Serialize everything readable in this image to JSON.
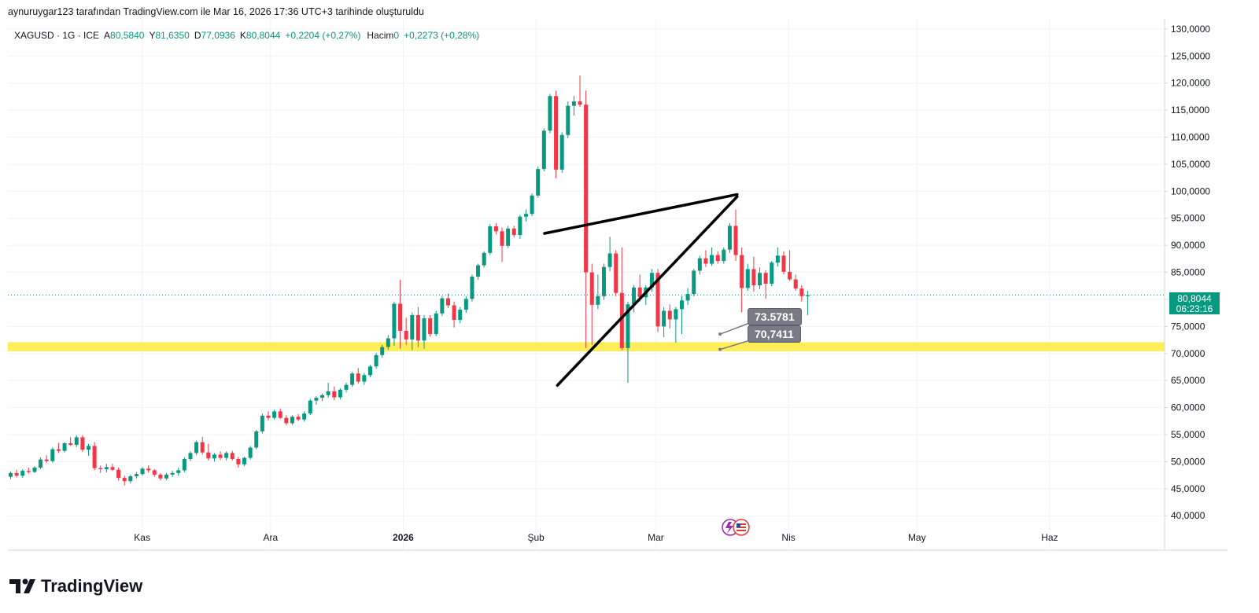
{
  "header": "aynuruygar123 tarafından TradingView.com ile Mar 16, 2026 17:36 UTC+3 tarihinde oluşturuldu",
  "legend": {
    "symbol": "XAGUSD · 1G · ICE",
    "o_label": "A",
    "o_value": "80,5840",
    "h_label": "Y",
    "h_value": "81,6350",
    "l_label": "D",
    "l_value": "77,0936",
    "c_label": "K",
    "c_value": "80,8044",
    "change": "+0,2204 (+0,27%)",
    "volume_label": "Hacim",
    "volume_value": "0",
    "volume_change": "+0,2273 (+0,28%)"
  },
  "brand": "TradingView",
  "last_price": {
    "value": "80,8044",
    "countdown": "06:23:16"
  },
  "annotations": [
    {
      "label": "73.5781",
      "value": 73.5781
    },
    {
      "label": "70,7411",
      "value": 70.7411
    }
  ],
  "colors": {
    "up": "#089981",
    "down": "#F23645",
    "support": "#FFEB3B",
    "trendline": "#000000"
  },
  "chart_data": {
    "type": "candlestick",
    "title": "XAGUSD",
    "y_axis": {
      "ylim": [
        38,
        131
      ],
      "ticks": [
        130,
        125,
        120,
        115,
        110,
        105,
        100,
        95,
        90,
        85,
        80,
        75,
        70,
        65,
        60,
        55,
        50,
        45,
        40
      ],
      "tick_labels": [
        "130,0000",
        "125,0000",
        "120,0000",
        "115,0000",
        "110,0000",
        "105,0000",
        "100,0000",
        "95,0000",
        "90,0000",
        "85,0000",
        "80,0000",
        "75,0000",
        "70,0000",
        "65,0000",
        "60,0000",
        "55,0000",
        "50,0000",
        "45,0000",
        "40,0000"
      ],
      "position": "right"
    },
    "x_axis": {
      "tick_labels": [
        "Kas",
        "Ara",
        "2026",
        "Şub",
        "Mar",
        "Nis",
        "May",
        "Haz"
      ],
      "tick_dates": [
        "2025-11-01",
        "2025-12-01",
        "2026-01-01",
        "2026-02-01",
        "2026-03-01",
        "2026-04-01",
        "2026-05-01",
        "2026-06-01"
      ],
      "bold": [
        "2026"
      ]
    },
    "start_date": "2025-10-01",
    "ohlc": [
      [
        47.2,
        48.2,
        46.8,
        47.9
      ],
      [
        47.9,
        48.5,
        47.1,
        47.4
      ],
      [
        47.4,
        48.6,
        47.0,
        48.3
      ],
      [
        48.3,
        48.9,
        47.8,
        48.1
      ],
      [
        48.1,
        49.2,
        47.9,
        48.9
      ],
      [
        48.9,
        50.8,
        48.6,
        50.4
      ],
      [
        50.4,
        51.2,
        49.8,
        50.1
      ],
      [
        50.1,
        52.6,
        49.8,
        52.3
      ],
      [
        52.3,
        53.5,
        51.6,
        52.0
      ],
      [
        52.0,
        53.6,
        51.7,
        53.4
      ],
      [
        53.4,
        54.5,
        52.9,
        53.1
      ],
      [
        53.1,
        54.9,
        52.7,
        54.5
      ],
      [
        54.5,
        54.9,
        51.8,
        52.2
      ],
      [
        52.2,
        53.3,
        51.1,
        52.9
      ],
      [
        52.9,
        53.6,
        48.4,
        48.8
      ],
      [
        48.8,
        49.3,
        47.9,
        48.6
      ],
      [
        48.6,
        49.6,
        48.0,
        49.0
      ],
      [
        49.0,
        49.6,
        48.3,
        48.5
      ],
      [
        48.5,
        48.9,
        46.5,
        47.0
      ],
      [
        47.0,
        47.4,
        45.6,
        46.4
      ],
      [
        46.4,
        47.6,
        46.0,
        47.3
      ],
      [
        47.3,
        48.1,
        46.9,
        47.7
      ],
      [
        47.7,
        49.0,
        47.4,
        48.7
      ],
      [
        48.7,
        49.3,
        48.0,
        48.4
      ],
      [
        48.4,
        48.6,
        47.2,
        47.6
      ],
      [
        47.6,
        47.9,
        46.5,
        46.9
      ],
      [
        46.9,
        47.9,
        46.6,
        47.6
      ],
      [
        47.6,
        48.3,
        47.2,
        47.9
      ],
      [
        47.9,
        48.9,
        47.4,
        48.4
      ],
      [
        48.4,
        50.8,
        48.0,
        50.5
      ],
      [
        50.5,
        51.9,
        50.1,
        51.6
      ],
      [
        51.6,
        53.9,
        51.2,
        53.6
      ],
      [
        53.6,
        54.6,
        51.3,
        51.7
      ],
      [
        51.7,
        53.3,
        50.2,
        50.6
      ],
      [
        50.6,
        51.6,
        50.0,
        51.3
      ],
      [
        51.3,
        51.9,
        50.3,
        50.7
      ],
      [
        50.7,
        51.9,
        50.2,
        51.6
      ],
      [
        51.6,
        52.0,
        50.2,
        50.5
      ],
      [
        50.5,
        50.9,
        48.9,
        49.5
      ],
      [
        49.5,
        50.9,
        49.2,
        50.7
      ],
      [
        50.7,
        52.9,
        50.4,
        52.6
      ],
      [
        52.6,
        55.9,
        52.3,
        55.6
      ],
      [
        55.6,
        58.9,
        55.2,
        58.5
      ],
      [
        58.5,
        59.3,
        57.6,
        58.1
      ],
      [
        58.1,
        59.6,
        57.8,
        59.3
      ],
      [
        59.3,
        59.8,
        57.9,
        58.1
      ],
      [
        58.1,
        58.6,
        56.7,
        57.1
      ],
      [
        57.1,
        58.6,
        56.8,
        58.3
      ],
      [
        58.3,
        58.8,
        57.5,
        57.8
      ],
      [
        57.8,
        59.3,
        57.4,
        58.9
      ],
      [
        58.9,
        61.6,
        58.6,
        61.3
      ],
      [
        61.3,
        62.1,
        60.5,
        61.8
      ],
      [
        61.8,
        62.6,
        61.2,
        62.3
      ],
      [
        62.3,
        64.6,
        61.8,
        63.0
      ],
      [
        63.0,
        63.9,
        61.4,
        61.9
      ],
      [
        61.9,
        63.6,
        61.5,
        63.3
      ],
      [
        63.3,
        64.6,
        62.8,
        64.2
      ],
      [
        64.2,
        66.6,
        63.8,
        66.3
      ],
      [
        66.3,
        67.3,
        64.4,
        64.8
      ],
      [
        64.8,
        66.4,
        64.2,
        66.0
      ],
      [
        66.0,
        67.9,
        65.6,
        67.6
      ],
      [
        67.6,
        70.1,
        67.2,
        69.7
      ],
      [
        69.7,
        71.6,
        69.2,
        71.2
      ],
      [
        71.2,
        73.4,
        70.7,
        72.8
      ],
      [
        72.8,
        79.6,
        71.4,
        79.2
      ],
      [
        79.2,
        83.6,
        70.9,
        74.2
      ],
      [
        74.2,
        76.6,
        71.6,
        72.6
      ],
      [
        72.6,
        77.6,
        70.6,
        77.1
      ],
      [
        77.1,
        78.6,
        71.2,
        72.4
      ],
      [
        72.4,
        77.1,
        70.9,
        76.5
      ],
      [
        76.5,
        77.1,
        73.1,
        73.6
      ],
      [
        73.6,
        77.9,
        73.2,
        77.4
      ],
      [
        77.4,
        80.6,
        76.9,
        80.2
      ],
      [
        80.2,
        81.1,
        78.4,
        78.9
      ],
      [
        78.9,
        79.6,
        74.8,
        76.2
      ],
      [
        76.2,
        78.6,
        75.6,
        78.1
      ],
      [
        78.1,
        80.6,
        77.5,
        80.1
      ],
      [
        80.1,
        84.6,
        79.6,
        84.2
      ],
      [
        84.2,
        86.6,
        83.6,
        86.3
      ],
      [
        86.3,
        88.9,
        85.9,
        88.6
      ],
      [
        88.6,
        93.9,
        88.2,
        93.5
      ],
      [
        93.5,
        94.1,
        92.0,
        92.6
      ],
      [
        92.6,
        93.3,
        86.9,
        89.9
      ],
      [
        89.9,
        93.6,
        89.5,
        93.1
      ],
      [
        93.1,
        93.6,
        91.5,
        91.9
      ],
      [
        91.9,
        95.6,
        91.2,
        95.3
      ],
      [
        95.3,
        96.6,
        94.4,
        95.8
      ],
      [
        95.8,
        99.6,
        95.4,
        99.2
      ],
      [
        99.2,
        104.6,
        98.8,
        104.1
      ],
      [
        104.1,
        111.6,
        103.7,
        111.2
      ],
      [
        111.2,
        118.0,
        110.7,
        117.6
      ],
      [
        117.6,
        118.6,
        102.4,
        104.0
      ],
      [
        104.0,
        110.9,
        103.4,
        110.4
      ],
      [
        110.4,
        116.6,
        109.8,
        115.8
      ],
      [
        115.8,
        117.6,
        114.0,
        116.6
      ],
      [
        116.6,
        121.4,
        115.6,
        116.0
      ],
      [
        116.0,
        118.6,
        71.0,
        85.0
      ],
      [
        85.0,
        86.6,
        71.6,
        79.0
      ],
      [
        79.0,
        84.6,
        78.2,
        80.6
      ],
      [
        80.6,
        86.6,
        79.9,
        86.0
      ],
      [
        86.0,
        91.6,
        85.2,
        88.5
      ],
      [
        88.5,
        89.1,
        80.6,
        81.2
      ],
      [
        81.2,
        89.6,
        70.6,
        71.0
      ],
      [
        71.0,
        79.6,
        64.6,
        79.1
      ],
      [
        79.1,
        82.6,
        77.6,
        82.2
      ],
      [
        82.2,
        84.6,
        79.6,
        80.4
      ],
      [
        80.4,
        82.6,
        79.0,
        82.2
      ],
      [
        82.2,
        85.6,
        81.4,
        84.9
      ],
      [
        84.9,
        85.6,
        74.0,
        75.0
      ],
      [
        75.0,
        78.6,
        73.0,
        77.9
      ],
      [
        77.9,
        79.1,
        74.6,
        76.3
      ],
      [
        76.3,
        78.6,
        72.0,
        78.2
      ],
      [
        78.2,
        80.6,
        73.6,
        79.8
      ],
      [
        79.8,
        82.1,
        79.0,
        81.0
      ],
      [
        81.0,
        85.6,
        80.6,
        85.3
      ],
      [
        85.3,
        88.1,
        84.6,
        87.6
      ],
      [
        87.6,
        89.1,
        86.0,
        86.6
      ],
      [
        86.6,
        89.6,
        86.2,
        88.2
      ],
      [
        88.2,
        88.9,
        86.6,
        87.1
      ],
      [
        87.1,
        89.6,
        86.6,
        89.2
      ],
      [
        89.2,
        94.1,
        88.6,
        93.6
      ],
      [
        93.6,
        96.6,
        87.1,
        88.2
      ],
      [
        88.2,
        89.6,
        77.6,
        82.1
      ],
      [
        82.1,
        86.6,
        81.6,
        85.6
      ],
      [
        85.6,
        87.9,
        81.4,
        82.6
      ],
      [
        82.6,
        85.9,
        81.9,
        84.9
      ],
      [
        84.9,
        85.4,
        80.1,
        82.9
      ],
      [
        82.9,
        87.1,
        82.4,
        86.8
      ],
      [
        86.8,
        89.6,
        86.1,
        88.1
      ],
      [
        88.1,
        88.9,
        84.6,
        85.1
      ],
      [
        85.1,
        89.1,
        83.4,
        83.7
      ],
      [
        83.7,
        84.6,
        81.6,
        82.0
      ],
      [
        82.0,
        82.6,
        79.6,
        80.6
      ],
      [
        80.6,
        81.6,
        77.1,
        80.8
      ]
    ],
    "annotations": {
      "support_zone": [
        70.7,
        71.8
      ],
      "trendlines": [
        {
          "from": [
            "2026-02-03",
            92.2
          ],
          "to": [
            "2026-03-20",
            99.4
          ]
        },
        {
          "from": [
            "2026-02-06",
            64.1
          ],
          "to": [
            "2026-03-20",
            99.0
          ]
        }
      ],
      "price_labels": [
        "73.5781",
        "70,7411"
      ]
    },
    "last_price": 80.8044,
    "grid": true
  }
}
